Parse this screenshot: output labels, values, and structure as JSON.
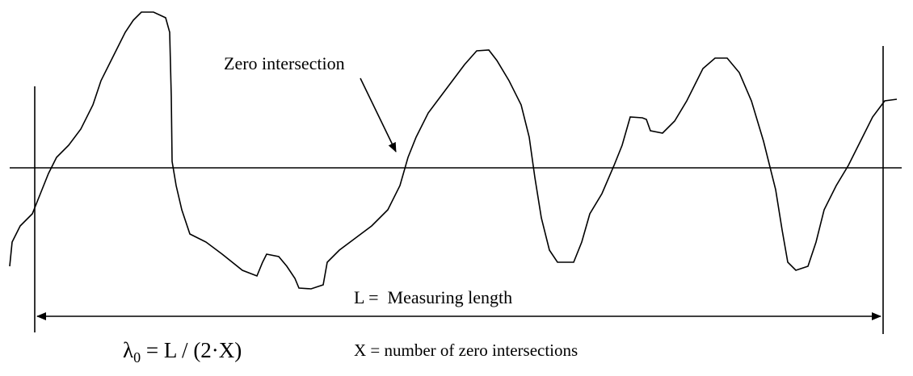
{
  "annotation": "Zero intersection",
  "measuring_length": "L =  Measuring length",
  "formula": {
    "symbol": "λ",
    "subscript": "0",
    "expression": " = L / (2·X)"
  },
  "legend": "X = number of zero intersections"
}
